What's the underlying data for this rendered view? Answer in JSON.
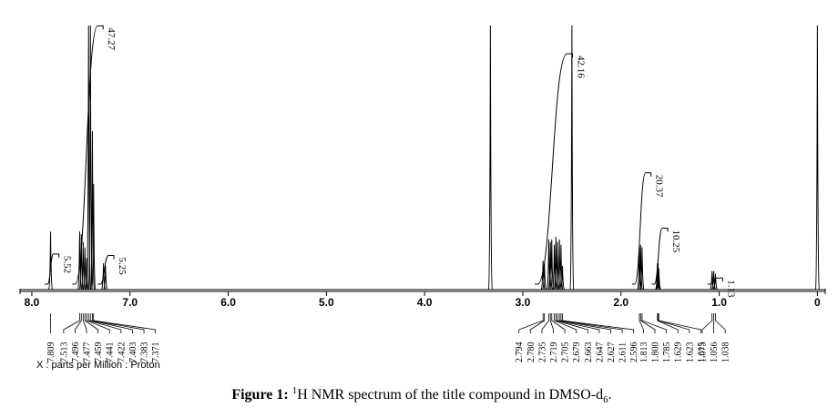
{
  "chart_data": {
    "type": "nmr",
    "xlabel": "X : parts per Million : Proton",
    "caption": {
      "label": "Figure 1:",
      "sup": "1",
      "text": "H NMR spectrum of the title compound in DMSO-d",
      "sub": "6",
      "end": "."
    },
    "xlim": [
      8.12,
      -0.08
    ],
    "ylim": [
      0,
      100
    ],
    "xticks": [
      {
        "value": 8,
        "label": "8.0"
      },
      {
        "value": 7,
        "label": "7.0"
      },
      {
        "value": 6,
        "label": "6.0"
      },
      {
        "value": 5,
        "label": "5.0"
      },
      {
        "value": 4,
        "label": "4.0"
      },
      {
        "value": 3,
        "label": "3.0"
      },
      {
        "value": 2,
        "label": "2.0"
      },
      {
        "value": 1,
        "label": "1.0"
      },
      0
    ],
    "color": "#000000",
    "peaks": {
      "ppm": [
        7.809,
        7.513,
        7.496,
        7.477,
        7.459,
        7.441,
        7.422,
        7.403,
        7.383,
        7.371,
        7.27,
        7.25,
        3.33,
        2.794,
        2.78,
        2.735,
        2.719,
        2.705,
        2.679,
        2.663,
        2.647,
        2.627,
        2.611,
        2.596,
        2.5,
        1.813,
        1.8,
        1.785,
        1.629,
        1.623,
        1.615,
        1.073,
        1.056,
        1.038,
        0
      ],
      "heights": [
        22,
        22,
        21,
        18,
        16,
        12,
        100,
        100,
        60,
        40,
        10,
        9,
        100,
        11,
        10,
        19,
        18,
        19,
        17,
        20,
        18,
        19,
        17,
        9,
        100,
        16,
        17,
        16,
        10,
        10,
        8,
        7,
        7,
        6,
        100
      ]
    },
    "peak_picks": {
      "values": [
        7.809,
        7.513,
        7.496,
        7.477,
        7.459,
        7.441,
        7.422,
        7.403,
        7.383,
        7.371,
        2.794,
        2.78,
        2.735,
        2.719,
        2.705,
        2.679,
        2.663,
        2.647,
        2.627,
        2.611,
        2.596,
        1.813,
        1.8,
        1.785,
        1.629,
        1.623,
        1.615,
        1.073,
        1.056,
        1.038
      ],
      "value_labels": [
        "7.809",
        "7.513",
        "7.496",
        "7.477",
        "7.459",
        "7.441",
        "7.422",
        "7.403",
        "7.383",
        "7.371",
        "2.794",
        "2.780",
        "2.735",
        "2.719",
        "2.705",
        "2.679",
        "2.663",
        "2.647",
        "2.627",
        "2.611",
        "2.596",
        "1.813",
        "1.800",
        "1.785",
        "1.629",
        "1.623",
        "1.615",
        "1.073",
        "1.056",
        "1.038"
      ]
    },
    "integrals": {
      "values": [
        5.52,
        47.27,
        5.25,
        42.16,
        20.37,
        10.25,
        1.13
      ],
      "ranges": [
        [
          7.84,
          7.78
        ],
        [
          7.56,
          7.33
        ],
        [
          7.3,
          7.22
        ],
        [
          2.85,
          2.55
        ],
        [
          1.86,
          1.75
        ],
        [
          1.66,
          1.58
        ],
        [
          1.09,
          1.02
        ]
      ]
    }
  }
}
